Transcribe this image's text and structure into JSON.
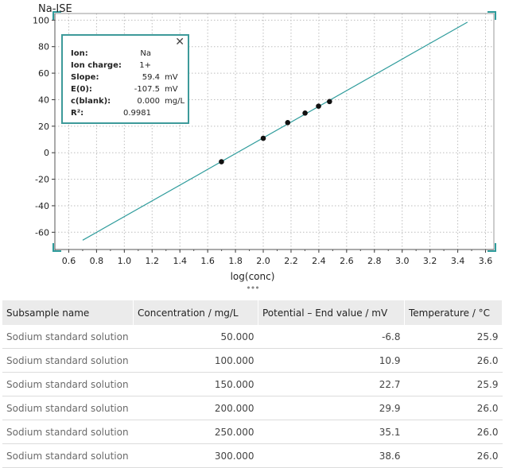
{
  "colors": {
    "line": "#2f9c9c",
    "point": "#111111",
    "frame": "#2f9c9c",
    "header_bg": "#ebebeb"
  },
  "chart_title": "Na-ISE",
  "legend": {
    "close_icon": "close-icon",
    "rows": [
      {
        "key": "Ion:",
        "value": "Na",
        "unit": ""
      },
      {
        "key": "Ion charge:",
        "value": "1+",
        "unit": ""
      },
      {
        "key": "Slope:",
        "value": "59.4",
        "unit": "mV"
      },
      {
        "key": "E(0):",
        "value": "-107.5",
        "unit": "mV"
      },
      {
        "key": "c(blank):",
        "value": "0.000",
        "unit": "mg/L"
      },
      {
        "key": "R²:",
        "value": "0.9981",
        "unit": ""
      }
    ]
  },
  "chart_data": {
    "type": "scatter",
    "title": "Na-ISE",
    "xlabel": "log(conc)",
    "ylabel": "",
    "xlim": [
      0.5,
      3.66
    ],
    "ylim": [
      -73,
      105
    ],
    "x_ticks": [
      "0.6",
      "0.8",
      "1.0",
      "1.2",
      "1.4",
      "1.6",
      "1.8",
      "2.0",
      "2.2",
      "2.4",
      "2.6",
      "2.8",
      "3.0",
      "3.2",
      "3.4",
      "3.6"
    ],
    "y_ticks": [
      "100",
      "80",
      "60",
      "40",
      "20",
      "0",
      "-20",
      "-40",
      "-60"
    ],
    "grid": true,
    "points": [
      {
        "x": 1.699,
        "y": -6.8
      },
      {
        "x": 2.0,
        "y": 10.9
      },
      {
        "x": 2.176,
        "y": 22.7
      },
      {
        "x": 2.301,
        "y": 29.9
      },
      {
        "x": 2.398,
        "y": 35.1
      },
      {
        "x": 2.477,
        "y": 38.6
      }
    ],
    "fit_line": {
      "x": [
        0.7,
        3.47
      ],
      "y": [
        -66,
        98.5
      ]
    }
  },
  "table": {
    "headers": [
      "Subsample name",
      "Concentration / mg/L",
      "Potential – End value / mV",
      "Temperature / °C"
    ],
    "rows": [
      [
        "Sodium standard solution",
        "50.000",
        "-6.8",
        "25.9"
      ],
      [
        "Sodium standard solution",
        "100.000",
        "10.9",
        "26.0"
      ],
      [
        "Sodium standard solution",
        "150.000",
        "22.7",
        "25.9"
      ],
      [
        "Sodium standard solution",
        "200.000",
        "29.9",
        "26.0"
      ],
      [
        "Sodium standard solution",
        "250.000",
        "35.1",
        "26.0"
      ],
      [
        "Sodium standard solution",
        "300.000",
        "38.6",
        "26.0"
      ]
    ]
  },
  "resize_handle": "•••"
}
